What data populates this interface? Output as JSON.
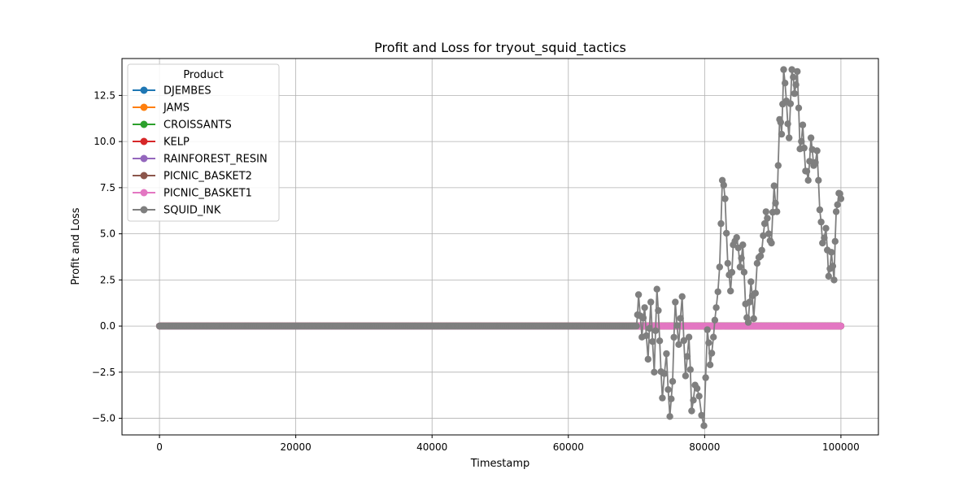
{
  "chart_data": {
    "type": "line",
    "title": "Profit and Loss for tryout_squid_tactics",
    "xlabel": "Timestamp",
    "ylabel": "Profit and Loss",
    "xlim": [
      -5500,
      105500
    ],
    "ylim": [
      -5.9,
      14.5
    ],
    "xticks": [
      0,
      20000,
      40000,
      60000,
      80000,
      100000
    ],
    "xtick_labels": [
      "0",
      "20000",
      "40000",
      "60000",
      "80000",
      "100000"
    ],
    "yticks": [
      -5.0,
      -2.5,
      0.0,
      2.5,
      5.0,
      7.5,
      10.0,
      12.5
    ],
    "ytick_labels": [
      "−5.0",
      "−2.5",
      "0.0",
      "2.5",
      "5.0",
      "7.5",
      "10.0",
      "12.5"
    ],
    "grid": true,
    "legend": {
      "title": "Product",
      "placement": "top-left"
    },
    "series": [
      {
        "name": "DJEMBES",
        "color": "#1f77b4",
        "style": "flat-zero",
        "x_range": [
          0,
          100000
        ]
      },
      {
        "name": "JAMS",
        "color": "#ff7f0e",
        "style": "flat-zero",
        "x_range": [
          0,
          100000
        ]
      },
      {
        "name": "CROISSANTS",
        "color": "#2ca02c",
        "style": "flat-zero",
        "x_range": [
          0,
          100000
        ]
      },
      {
        "name": "KELP",
        "color": "#d62728",
        "style": "flat-zero",
        "x_range": [
          0,
          100000
        ]
      },
      {
        "name": "RAINFOREST_RESIN",
        "color": "#9467bd",
        "style": "flat-zero",
        "x_range": [
          0,
          100000
        ]
      },
      {
        "name": "PICNIC_BASKET2",
        "color": "#8c564b",
        "style": "flat-zero",
        "x_range": [
          0,
          100000
        ]
      },
      {
        "name": "PICNIC_BASKET1",
        "color": "#e377c2",
        "style": "flat-zero",
        "x_range": [
          0,
          100000
        ]
      },
      {
        "name": "SQUID_INK",
        "color": "#7f7f7f",
        "style": "flat-then-varying",
        "flat_until": 70000,
        "x_range": [
          0,
          100000
        ],
        "keypoints": [
          [
            70000,
            0.0
          ],
          [
            70300,
            1.7
          ],
          [
            70800,
            -0.6
          ],
          [
            71200,
            1.0
          ],
          [
            71700,
            -1.8
          ],
          [
            72100,
            1.3
          ],
          [
            72600,
            -2.5
          ],
          [
            73000,
            2.0
          ],
          [
            73400,
            -0.8
          ],
          [
            73800,
            -3.9
          ],
          [
            74400,
            -1.5
          ],
          [
            74900,
            -4.9
          ],
          [
            75300,
            -3.0
          ],
          [
            75700,
            1.3
          ],
          [
            76200,
            -1.0
          ],
          [
            76700,
            1.6
          ],
          [
            77200,
            -2.7
          ],
          [
            77700,
            -0.6
          ],
          [
            78100,
            -4.6
          ],
          [
            78600,
            -3.2
          ],
          [
            79200,
            -3.8
          ],
          [
            79900,
            -5.4
          ],
          [
            80400,
            -0.2
          ],
          [
            80800,
            -2.1
          ],
          [
            81300,
            -0.6
          ],
          [
            81700,
            1.0
          ],
          [
            82200,
            3.2
          ],
          [
            82600,
            7.9
          ],
          [
            83000,
            6.9
          ],
          [
            83400,
            3.4
          ],
          [
            83800,
            1.9
          ],
          [
            84200,
            4.4
          ],
          [
            84700,
            4.8
          ],
          [
            85200,
            3.2
          ],
          [
            85600,
            4.4
          ],
          [
            86000,
            1.2
          ],
          [
            86400,
            0.2
          ],
          [
            86800,
            2.4
          ],
          [
            87200,
            0.4
          ],
          [
            87700,
            3.4
          ],
          [
            88200,
            3.8
          ],
          [
            88600,
            4.9
          ],
          [
            89000,
            6.2
          ],
          [
            89400,
            5.0
          ],
          [
            89800,
            4.5
          ],
          [
            90200,
            7.6
          ],
          [
            90600,
            6.2
          ],
          [
            91000,
            11.2
          ],
          [
            91300,
            10.4
          ],
          [
            91600,
            13.9
          ],
          [
            92000,
            12.2
          ],
          [
            92400,
            10.2
          ],
          [
            92800,
            13.9
          ],
          [
            93200,
            12.6
          ],
          [
            93600,
            13.8
          ],
          [
            94000,
            9.6
          ],
          [
            94400,
            10.9
          ],
          [
            94800,
            8.4
          ],
          [
            95200,
            7.9
          ],
          [
            95600,
            10.2
          ],
          [
            96000,
            8.7
          ],
          [
            96500,
            9.5
          ],
          [
            96900,
            6.3
          ],
          [
            97300,
            4.5
          ],
          [
            97800,
            5.3
          ],
          [
            98200,
            2.7
          ],
          [
            98600,
            4.0
          ],
          [
            99000,
            2.5
          ],
          [
            99300,
            6.2
          ],
          [
            99700,
            7.2
          ],
          [
            100000,
            6.9
          ]
        ]
      }
    ]
  }
}
